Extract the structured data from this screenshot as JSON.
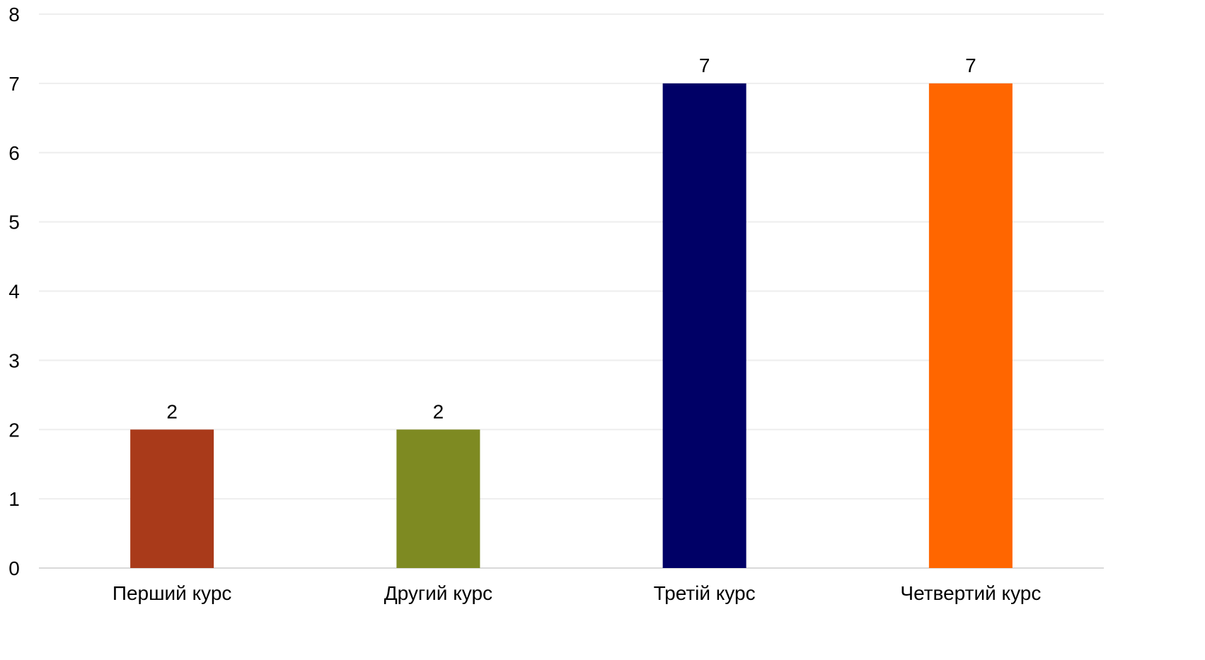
{
  "chart_data": {
    "type": "bar",
    "title": "",
    "xlabel": "",
    "ylabel": "",
    "categories": [
      "Перший курс",
      "Другий курс",
      "Третій курс",
      "Четвертий курс"
    ],
    "values": [
      2,
      2,
      7,
      7
    ],
    "colors": [
      "#a93a1a",
      "#7e8a22",
      "#000066",
      "#ff6600"
    ],
    "ylim": [
      0,
      8
    ],
    "yticks": [
      0,
      1,
      2,
      3,
      4,
      5,
      6,
      7,
      8
    ],
    "grid": true,
    "legend": "none",
    "data_labels": true
  }
}
